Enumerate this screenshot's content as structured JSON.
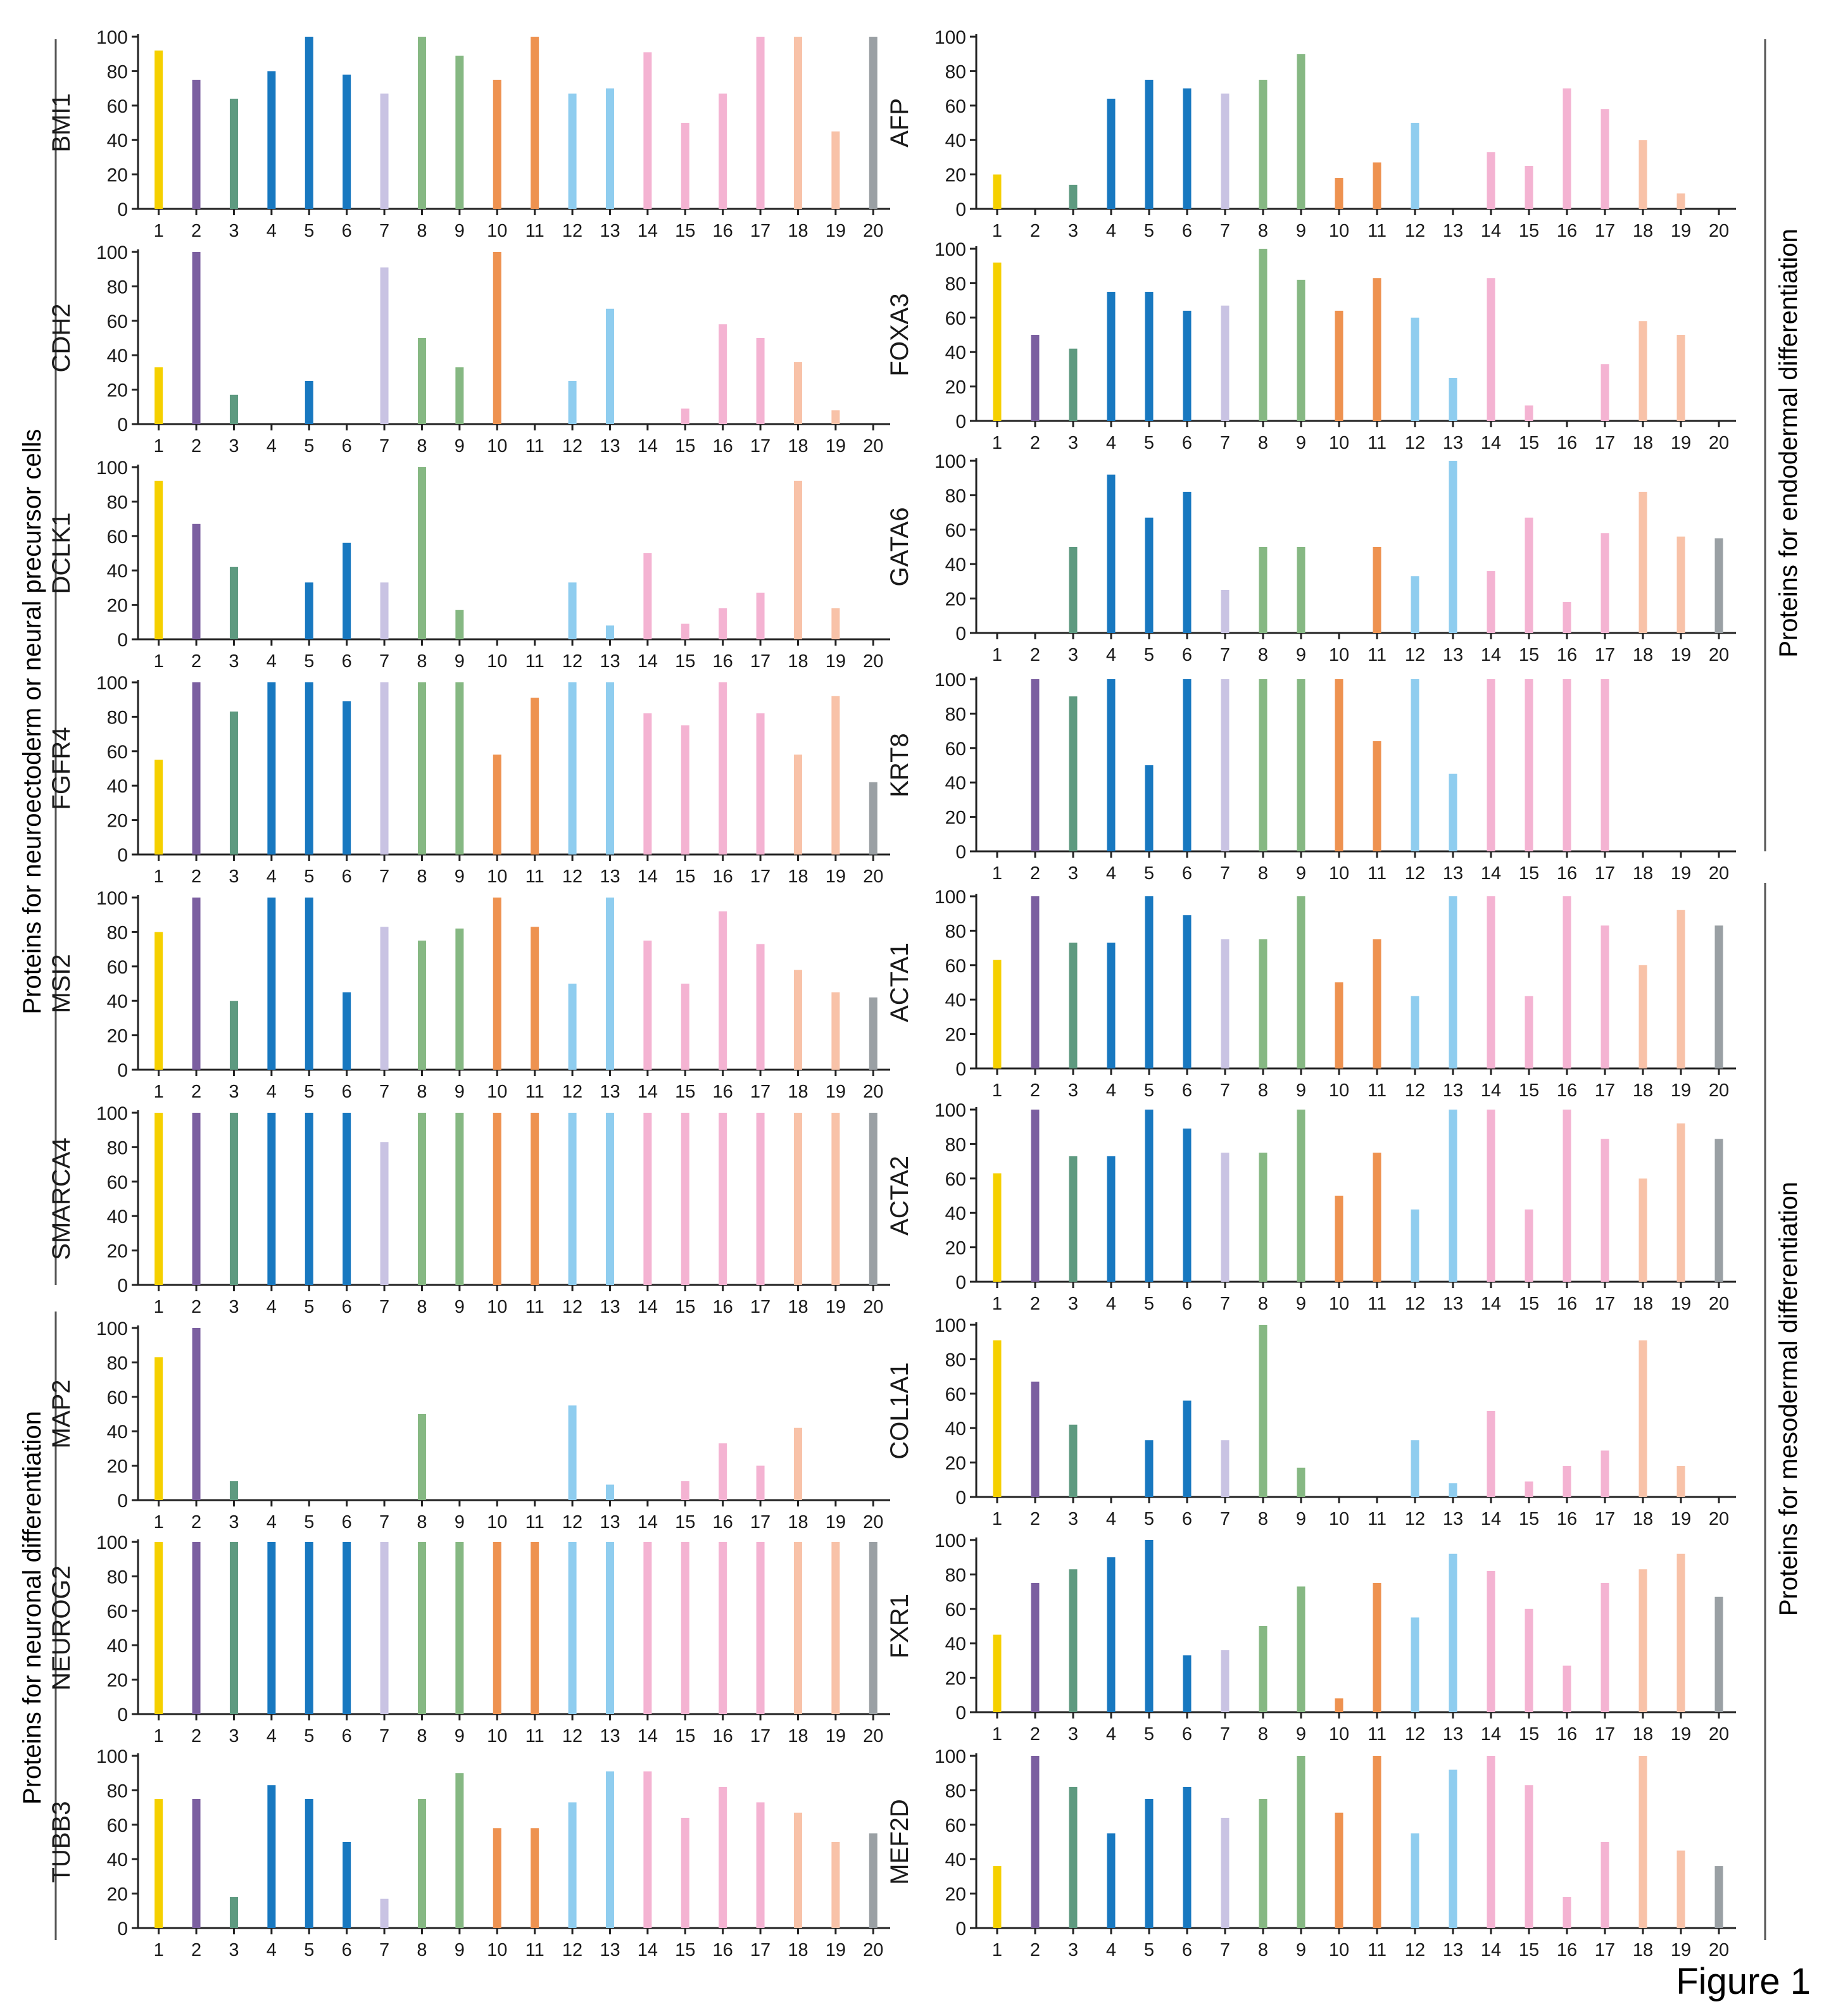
{
  "figure_label": "Figure 1",
  "group_labels": {
    "neuroectoderm": "Proteins for neuroectoderm or neural precursor cells",
    "neuronal": "Proteins for neuronal differentiation",
    "endodermal": "Proteins for endodermal differentiation",
    "mesodermal": "Proteins for mesodermal differentiation"
  },
  "bar_colors": [
    "#f5d000",
    "#7b5fa0",
    "#5e9a80",
    "#1878c0",
    "#1878c0",
    "#1878c0",
    "#c9c3e3",
    "#86b883",
    "#86b883",
    "#ee9250",
    "#ee9250",
    "#8fcdef",
    "#8fcdef",
    "#f4b3d2",
    "#f4b3d2",
    "#f4b3d2",
    "#f4b3d2",
    "#f8c2a8",
    "#f8c2a8",
    "#9aa0a4"
  ],
  "chart_data": [
    {
      "type": "bar",
      "ylabel": "BMI1",
      "ylim": [
        0,
        100
      ],
      "yticks": [
        0,
        20,
        40,
        60,
        80,
        100
      ],
      "categories": [
        "1",
        "2",
        "3",
        "4",
        "5",
        "6",
        "7",
        "8",
        "9",
        "10",
        "11",
        "12",
        "13",
        "14",
        "15",
        "16",
        "17",
        "18",
        "19",
        "20"
      ],
      "values": [
        92,
        75,
        64,
        80,
        100,
        78,
        67,
        100,
        89,
        75,
        100,
        67,
        70,
        91,
        50,
        67,
        100,
        100,
        45,
        100
      ]
    },
    {
      "type": "bar",
      "ylabel": "CDH2",
      "ylim": [
        0,
        100
      ],
      "yticks": [
        0,
        20,
        40,
        60,
        80,
        100
      ],
      "categories": [
        "1",
        "2",
        "3",
        "4",
        "5",
        "6",
        "7",
        "8",
        "9",
        "10",
        "11",
        "12",
        "13",
        "14",
        "15",
        "16",
        "17",
        "18",
        "19",
        "20"
      ],
      "values": [
        33,
        100,
        17,
        0,
        25,
        0,
        91,
        50,
        33,
        100,
        0,
        25,
        67,
        0,
        9,
        58,
        50,
        36,
        8,
        0
      ]
    },
    {
      "type": "bar",
      "ylabel": "DCLK1",
      "ylim": [
        0,
        100
      ],
      "yticks": [
        0,
        20,
        40,
        60,
        80,
        100
      ],
      "categories": [
        "1",
        "2",
        "3",
        "4",
        "5",
        "6",
        "7",
        "8",
        "9",
        "10",
        "11",
        "12",
        "13",
        "14",
        "15",
        "16",
        "17",
        "18",
        "19",
        "20"
      ],
      "values": [
        92,
        67,
        42,
        0,
        33,
        56,
        33,
        100,
        17,
        0,
        0,
        33,
        8,
        50,
        9,
        18,
        27,
        92,
        18,
        0
      ]
    },
    {
      "type": "bar",
      "ylabel": "FGFR4",
      "ylim": [
        0,
        100
      ],
      "yticks": [
        0,
        20,
        40,
        60,
        80,
        100
      ],
      "categories": [
        "1",
        "2",
        "3",
        "4",
        "5",
        "6",
        "7",
        "8",
        "9",
        "10",
        "11",
        "12",
        "13",
        "14",
        "15",
        "16",
        "17",
        "18",
        "19",
        "20"
      ],
      "values": [
        55,
        100,
        83,
        100,
        100,
        89,
        100,
        100,
        100,
        58,
        91,
        100,
        100,
        82,
        75,
        100,
        82,
        58,
        92,
        42
      ]
    },
    {
      "type": "bar",
      "ylabel": "MSI2",
      "ylim": [
        0,
        100
      ],
      "yticks": [
        0,
        20,
        40,
        60,
        80,
        100
      ],
      "categories": [
        "1",
        "2",
        "3",
        "4",
        "5",
        "6",
        "7",
        "8",
        "9",
        "10",
        "11",
        "12",
        "13",
        "14",
        "15",
        "16",
        "17",
        "18",
        "19",
        "20"
      ],
      "values": [
        80,
        100,
        40,
        100,
        100,
        45,
        83,
        75,
        82,
        100,
        83,
        50,
        100,
        75,
        50,
        92,
        73,
        58,
        45,
        42
      ]
    },
    {
      "type": "bar",
      "ylabel": "SMARCA4",
      "ylim": [
        0,
        100
      ],
      "yticks": [
        0,
        20,
        40,
        60,
        80,
        100
      ],
      "categories": [
        "1",
        "2",
        "3",
        "4",
        "5",
        "6",
        "7",
        "8",
        "9",
        "10",
        "11",
        "12",
        "13",
        "14",
        "15",
        "16",
        "17",
        "18",
        "19",
        "20"
      ],
      "values": [
        100,
        100,
        100,
        100,
        100,
        100,
        83,
        100,
        100,
        100,
        100,
        100,
        100,
        100,
        100,
        100,
        100,
        100,
        100,
        100
      ]
    },
    {
      "type": "bar",
      "ylabel": "MAP2",
      "ylim": [
        0,
        100
      ],
      "yticks": [
        0,
        20,
        40,
        60,
        80,
        100
      ],
      "categories": [
        "1",
        "2",
        "3",
        "4",
        "5",
        "6",
        "7",
        "8",
        "9",
        "10",
        "11",
        "12",
        "13",
        "14",
        "15",
        "16",
        "17",
        "18",
        "19",
        "20"
      ],
      "values": [
        83,
        100,
        11,
        0,
        0,
        0,
        0,
        50,
        0,
        0,
        0,
        55,
        9,
        0,
        11,
        33,
        20,
        42,
        0,
        0
      ]
    },
    {
      "type": "bar",
      "ylabel": "NEUROG2",
      "ylim": [
        0,
        100
      ],
      "yticks": [
        0,
        20,
        40,
        60,
        80,
        100
      ],
      "categories": [
        "1",
        "2",
        "3",
        "4",
        "5",
        "6",
        "7",
        "8",
        "9",
        "10",
        "11",
        "12",
        "13",
        "14",
        "15",
        "16",
        "17",
        "18",
        "19",
        "20"
      ],
      "values": [
        100,
        100,
        100,
        100,
        100,
        100,
        100,
        100,
        100,
        100,
        100,
        100,
        100,
        100,
        100,
        100,
        100,
        100,
        100,
        100
      ]
    },
    {
      "type": "bar",
      "ylabel": "TUBB3",
      "ylim": [
        0,
        100
      ],
      "yticks": [
        0,
        20,
        40,
        60,
        80,
        100
      ],
      "categories": [
        "1",
        "2",
        "3",
        "4",
        "5",
        "6",
        "7",
        "8",
        "9",
        "10",
        "11",
        "12",
        "13",
        "14",
        "15",
        "16",
        "17",
        "18",
        "19",
        "20"
      ],
      "values": [
        75,
        75,
        18,
        83,
        75,
        50,
        17,
        75,
        90,
        58,
        58,
        73,
        91,
        91,
        64,
        82,
        73,
        67,
        50,
        55
      ]
    },
    {
      "type": "bar",
      "ylabel": "AFP",
      "ylim": [
        0,
        100
      ],
      "yticks": [
        0,
        20,
        40,
        60,
        80,
        100
      ],
      "categories": [
        "1",
        "2",
        "3",
        "4",
        "5",
        "6",
        "7",
        "8",
        "9",
        "10",
        "11",
        "12",
        "13",
        "14",
        "15",
        "16",
        "17",
        "18",
        "19",
        "20"
      ],
      "values": [
        20,
        0,
        14,
        64,
        75,
        70,
        67,
        75,
        90,
        18,
        27,
        50,
        0,
        33,
        25,
        70,
        58,
        40,
        9,
        0
      ]
    },
    {
      "type": "bar",
      "ylabel": "FOXA3",
      "ylim": [
        0,
        100
      ],
      "yticks": [
        0,
        20,
        40,
        60,
        80,
        100
      ],
      "categories": [
        "1",
        "2",
        "3",
        "4",
        "5",
        "6",
        "7",
        "8",
        "9",
        "10",
        "11",
        "12",
        "13",
        "14",
        "15",
        "16",
        "17",
        "18",
        "19",
        "20"
      ],
      "values": [
        92,
        50,
        42,
        75,
        75,
        64,
        67,
        100,
        82,
        64,
        83,
        60,
        25,
        83,
        9,
        0,
        33,
        58,
        50,
        0
      ]
    },
    {
      "type": "bar",
      "ylabel": "GATA6",
      "ylim": [
        0,
        100
      ],
      "yticks": [
        0,
        20,
        40,
        60,
        80,
        100
      ],
      "categories": [
        "1",
        "2",
        "3",
        "4",
        "5",
        "6",
        "7",
        "8",
        "9",
        "10",
        "11",
        "12",
        "13",
        "14",
        "15",
        "16",
        "17",
        "18",
        "19",
        "20"
      ],
      "values": [
        0,
        0,
        50,
        92,
        67,
        82,
        25,
        50,
        50,
        0,
        50,
        33,
        100,
        36,
        67,
        18,
        58,
        82,
        56,
        55
      ]
    },
    {
      "type": "bar",
      "ylabel": "KRT8",
      "ylim": [
        0,
        100
      ],
      "yticks": [
        0,
        20,
        40,
        60,
        80,
        100
      ],
      "categories": [
        "1",
        "2",
        "3",
        "4",
        "5",
        "6",
        "7",
        "8",
        "9",
        "10",
        "11",
        "12",
        "13",
        "14",
        "15",
        "16",
        "17",
        "18",
        "19",
        "20"
      ],
      "values": [
        0,
        100,
        90,
        100,
        50,
        100,
        100,
        100,
        100,
        100,
        64,
        100,
        45,
        100,
        100,
        100,
        100,
        0,
        0,
        0
      ]
    },
    {
      "type": "bar",
      "ylabel": "ACTA1",
      "ylim": [
        0,
        100
      ],
      "yticks": [
        0,
        20,
        40,
        60,
        80,
        100
      ],
      "categories": [
        "1",
        "2",
        "3",
        "4",
        "5",
        "6",
        "7",
        "8",
        "9",
        "10",
        "11",
        "12",
        "13",
        "14",
        "15",
        "16",
        "17",
        "18",
        "19",
        "20"
      ],
      "values": [
        63,
        100,
        73,
        73,
        100,
        89,
        75,
        75,
        100,
        50,
        75,
        42,
        100,
        100,
        42,
        100,
        83,
        60,
        92,
        83
      ]
    },
    {
      "type": "bar",
      "ylabel": "ACTA2",
      "ylim": [
        0,
        100
      ],
      "yticks": [
        0,
        20,
        40,
        60,
        80,
        100
      ],
      "categories": [
        "1",
        "2",
        "3",
        "4",
        "5",
        "6",
        "7",
        "8",
        "9",
        "10",
        "11",
        "12",
        "13",
        "14",
        "15",
        "16",
        "17",
        "18",
        "19",
        "20"
      ],
      "values": [
        63,
        100,
        73,
        73,
        100,
        89,
        75,
        75,
        100,
        50,
        75,
        42,
        100,
        100,
        42,
        100,
        83,
        60,
        92,
        83
      ]
    },
    {
      "type": "bar",
      "ylabel": "COL1A1",
      "ylim": [
        0,
        100
      ],
      "yticks": [
        0,
        20,
        40,
        60,
        80,
        100
      ],
      "categories": [
        "1",
        "2",
        "3",
        "4",
        "5",
        "6",
        "7",
        "8",
        "9",
        "10",
        "11",
        "12",
        "13",
        "14",
        "15",
        "16",
        "17",
        "18",
        "19",
        "20"
      ],
      "values": [
        91,
        67,
        42,
        0,
        33,
        56,
        33,
        100,
        17,
        0,
        0,
        33,
        8,
        50,
        9,
        18,
        27,
        91,
        18,
        0
      ]
    },
    {
      "type": "bar",
      "ylabel": "FXR1",
      "ylim": [
        0,
        100
      ],
      "yticks": [
        0,
        20,
        40,
        60,
        80,
        100
      ],
      "categories": [
        "1",
        "2",
        "3",
        "4",
        "5",
        "6",
        "7",
        "8",
        "9",
        "10",
        "11",
        "12",
        "13",
        "14",
        "15",
        "16",
        "17",
        "18",
        "19",
        "20"
      ],
      "values": [
        45,
        75,
        83,
        90,
        100,
        33,
        36,
        50,
        73,
        8,
        75,
        55,
        92,
        82,
        60,
        27,
        75,
        83,
        92,
        67
      ]
    },
    {
      "type": "bar",
      "ylabel": "MEF2D",
      "ylim": [
        0,
        100
      ],
      "yticks": [
        0,
        20,
        40,
        60,
        80,
        100
      ],
      "categories": [
        "1",
        "2",
        "3",
        "4",
        "5",
        "6",
        "7",
        "8",
        "9",
        "10",
        "11",
        "12",
        "13",
        "14",
        "15",
        "16",
        "17",
        "18",
        "19",
        "20"
      ],
      "values": [
        36,
        100,
        82,
        55,
        75,
        82,
        64,
        75,
        100,
        67,
        100,
        55,
        92,
        100,
        83,
        18,
        50,
        100,
        45,
        36
      ]
    }
  ]
}
